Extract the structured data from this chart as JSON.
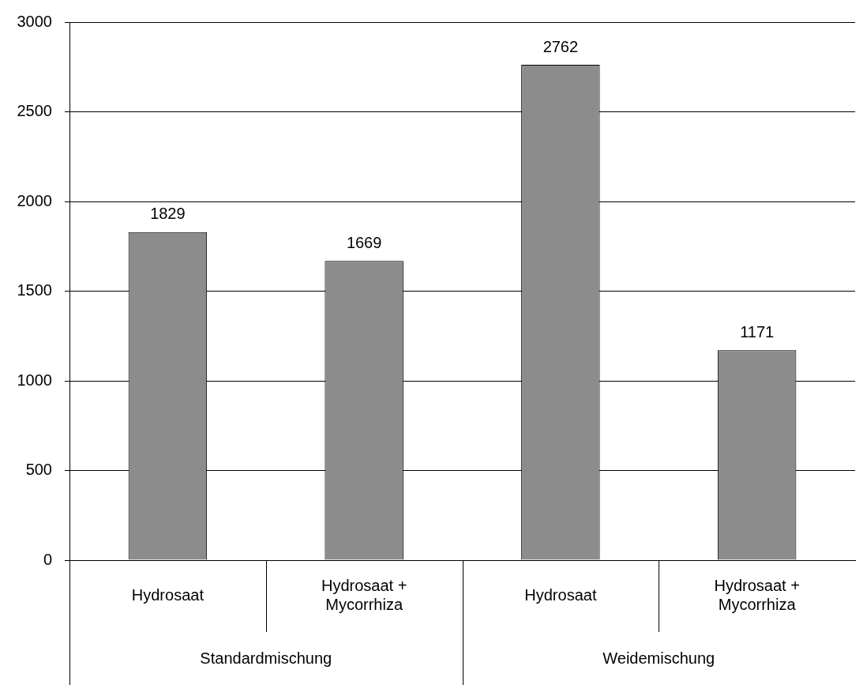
{
  "chart_data": {
    "type": "bar",
    "categories": [
      "Hydrosaat",
      "Hydrosaat + Mycorrhiza",
      "Hydrosaat",
      "Hydrosaat + Mycorrhiza"
    ],
    "values": [
      1829,
      1669,
      2762,
      1171
    ],
    "color": "#8c8c8c",
    "ylim": [
      0,
      3000
    ],
    "yticks": [
      0,
      500,
      1000,
      1500,
      2000,
      2500,
      3000
    ],
    "grid": "y",
    "data_labels": true,
    "legend": false,
    "annotations": [
      "Standardmischung",
      "Weidemischung"
    ]
  }
}
